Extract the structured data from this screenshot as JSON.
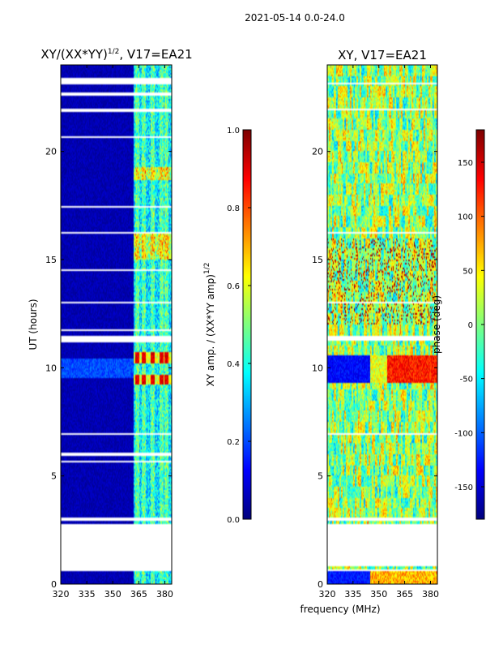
{
  "suptitle": "2021-05-14 0.0-24.0",
  "chart_data": [
    {
      "type": "heatmap",
      "title": "XY/(XX*YY)^1/2, V17=EA21",
      "title_base": "XY/(XX*YY)",
      "title_exp": "1/2",
      "title_tail": ", V17=EA21",
      "xlabel": "",
      "ylabel": "UT (hours)",
      "xlim": [
        320,
        384
      ],
      "ylim": [
        0,
        24
      ],
      "xticks": [
        320,
        335,
        350,
        365,
        380
      ],
      "yticks": [
        0,
        5,
        10,
        15,
        20
      ],
      "description": "Amplitude dynamic spectrum: mostly low (~0.05) at 320-362 MHz; bright vertical channels 362-384 MHz with values up to ~0.9 near 9.5 and 10.5 h and ~0.6 near 15-16 h and 19 h",
      "cmap": "jet",
      "colorbar": {
        "label": "XY amp. / (XX*YY amp)^1/2",
        "label_base": "XY amp. / (XX*YY amp)",
        "label_exp": "1/2",
        "range": [
          0.0,
          1.0
        ],
        "ticks": [
          "0.0",
          "0.2",
          "0.4",
          "0.6",
          "0.8",
          "1.0"
        ]
      },
      "flagged_hours": [
        [
          0.6,
          2.8
        ],
        [
          2.95,
          3.05
        ],
        [
          3.2,
          3.25
        ],
        [
          5.6,
          5.7
        ],
        [
          5.95,
          6.05
        ],
        [
          6.9,
          6.95
        ],
        [
          11.2,
          11.45
        ],
        [
          11.7,
          11.75
        ],
        [
          13.0,
          13.05
        ],
        [
          14.5,
          14.55
        ],
        [
          16.2,
          16.3
        ],
        [
          17.4,
          17.5
        ],
        [
          20.6,
          20.7
        ],
        [
          21.8,
          21.95
        ],
        [
          22.6,
          22.7
        ],
        [
          23.1,
          23.4
        ]
      ],
      "bright_channels_mhz": [
        364,
        368,
        373,
        378,
        381
      ]
    },
    {
      "type": "heatmap",
      "title": "XY, V17=EA21",
      "xlabel": "frequency (MHz)",
      "ylabel": "",
      "xlim": [
        320,
        384
      ],
      "ylim": [
        0,
        24
      ],
      "xticks": [
        320,
        335,
        350,
        365,
        380
      ],
      "yticks": [
        0,
        5,
        10,
        15,
        20
      ],
      "description": "Phase dynamic spectrum: noisy phases spanning -180..180 deg; coherent band near 9.5-10.5 h (dark blue at 320-345 MHz, orange/red at 355-384 MHz)",
      "cmap": "jet",
      "colorbar": {
        "label": "phase (deg)",
        "range": [
          -180,
          180
        ],
        "ticks": [
          "-150",
          "-100",
          "-50",
          "0",
          "50",
          "100",
          "150"
        ]
      },
      "flagged_hours": [
        [
          0.6,
          0.65
        ],
        [
          0.8,
          2.8
        ],
        [
          2.95,
          3.05
        ],
        [
          6.9,
          6.95
        ],
        [
          11.25,
          11.45
        ],
        [
          13.0,
          13.05
        ],
        [
          16.2,
          16.3
        ],
        [
          21.9,
          22.0
        ],
        [
          23.1,
          23.2
        ]
      ]
    }
  ]
}
